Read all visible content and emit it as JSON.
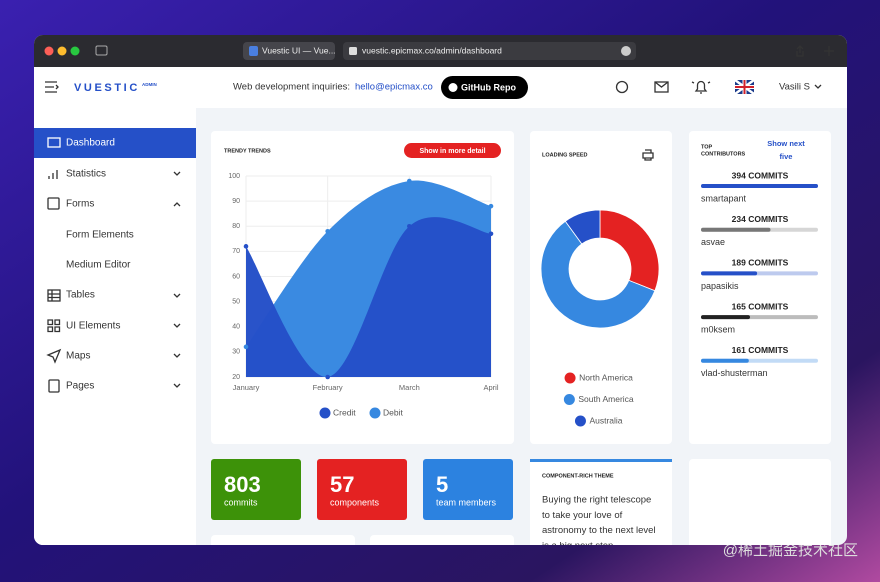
{
  "browser": {
    "tab_title": "Vuestic UI — Vue...",
    "url": "vuestic.epicmax.co/admin/dashboard"
  },
  "header": {
    "logo": "VUESTIC",
    "logo_badge": "ADMIN",
    "inquiry": "Web development inquiries:",
    "email": "hello@epicmax.co",
    "github_button": "GitHub Repo",
    "user": "Vasili S"
  },
  "sidebar": [
    "Dashboard",
    "Statistics",
    "Forms",
    "Form Elements",
    "Medium Editor",
    "Tables",
    "UI Elements",
    "Maps",
    "Pages"
  ],
  "chart_data": [
    {
      "type": "area",
      "title": "TRENDY TRENDS",
      "button": "Show in more detail",
      "categories": [
        "January",
        "February",
        "March",
        "April"
      ],
      "series": [
        {
          "name": "Credit",
          "color": "#2550c8",
          "values": [
            72,
            20,
            80,
            77
          ]
        },
        {
          "name": "Debit",
          "color": "#3688e0",
          "values": [
            32,
            78,
            98,
            88
          ]
        }
      ],
      "ylim": [
        20,
        100
      ],
      "yticks": [
        20,
        30,
        40,
        50,
        60,
        70,
        80,
        90,
        100
      ],
      "grid": true
    },
    {
      "type": "donut",
      "title": "LOADING SPEED",
      "categories": [
        "North America",
        "South America",
        "Australia"
      ],
      "values": [
        31,
        59,
        10
      ],
      "colors": [
        "#e42222",
        "#3688e0",
        "#2550c8"
      ]
    }
  ],
  "contributors": {
    "title_lines": [
      "TOP",
      "CONTRIBUTORS"
    ],
    "link_lines": [
      "Show next",
      "five"
    ],
    "items": [
      {
        "label": "394 COMMITS",
        "commits": 394,
        "name": "smartapant",
        "color": "#2550c8"
      },
      {
        "label": "234 COMMITS",
        "commits": 234,
        "name": "asvae",
        "color": "#777777"
      },
      {
        "label": "189 COMMITS",
        "commits": 189,
        "name": "papasikis",
        "color": "#2550c8"
      },
      {
        "label": "165 COMMITS",
        "commits": 165,
        "name": "m0ksem",
        "color": "#222222"
      },
      {
        "label": "161 COMMITS",
        "commits": 161,
        "name": "vlad-shusterman",
        "color": "#3688e0"
      }
    ]
  },
  "stats": [
    {
      "value": 803,
      "label": "commits",
      "color": "#3d9209"
    },
    {
      "value": 57,
      "label": "components",
      "color": "#e42222"
    },
    {
      "value": 5,
      "label": "team members",
      "color": "#2c82e0"
    }
  ],
  "theme_card": {
    "title": "COMPONENT-RICH THEME",
    "lines": [
      "Buying the right telescope",
      "to take your love of",
      "astronomy to the next level",
      "is a big next step."
    ]
  },
  "watermark": "@稀土掘金技术社区"
}
